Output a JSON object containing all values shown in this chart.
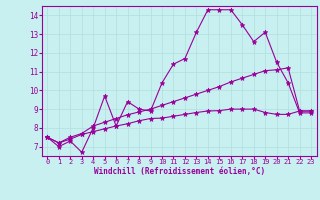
{
  "title": "",
  "xlabel": "Windchill (Refroidissement éolien,°C)",
  "bg_color": "#c8f0f0",
  "line_color": "#990099",
  "grid_color": "#b0dede",
  "text_color": "#990099",
  "xlim": [
    -0.5,
    23.5
  ],
  "ylim": [
    6.5,
    14.5
  ],
  "xticks": [
    0,
    1,
    2,
    3,
    4,
    5,
    6,
    7,
    8,
    9,
    10,
    11,
    12,
    13,
    14,
    15,
    16,
    17,
    18,
    19,
    20,
    21,
    22,
    23
  ],
  "yticks": [
    7,
    8,
    9,
    10,
    11,
    12,
    13,
    14
  ],
  "line1_y": [
    7.5,
    7.0,
    7.3,
    6.7,
    8.0,
    9.7,
    8.1,
    9.4,
    9.0,
    8.9,
    10.4,
    11.4,
    11.7,
    13.1,
    14.3,
    14.3,
    14.3,
    13.5,
    12.6,
    13.1,
    11.5,
    10.4,
    8.8,
    8.8
  ],
  "line2_y": [
    7.5,
    7.2,
    7.5,
    7.7,
    8.1,
    8.3,
    8.5,
    8.7,
    8.85,
    9.0,
    9.2,
    9.4,
    9.6,
    9.8,
    10.0,
    10.2,
    10.45,
    10.65,
    10.85,
    11.05,
    11.1,
    11.2,
    8.9,
    8.9
  ],
  "line3_y": [
    7.5,
    7.2,
    7.4,
    7.65,
    7.8,
    7.95,
    8.1,
    8.22,
    8.38,
    8.5,
    8.52,
    8.62,
    8.72,
    8.82,
    8.9,
    8.92,
    9.0,
    9.0,
    9.0,
    8.82,
    8.72,
    8.72,
    8.9,
    8.9
  ]
}
